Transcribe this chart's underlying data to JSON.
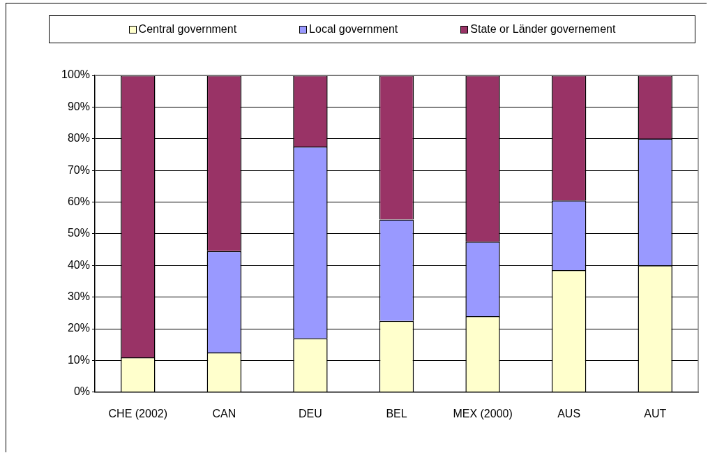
{
  "chart_data": {
    "type": "bar",
    "stacked": true,
    "categories": [
      "CHE (2002)",
      "CAN",
      "DEU",
      "BEL",
      "MEX (2000)",
      "AUS",
      "AUT"
    ],
    "series": [
      {
        "name": "Central government",
        "color": "#ffffcc",
        "values": [
          11,
          12.5,
          17,
          22.5,
          24,
          38.5,
          40
        ]
      },
      {
        "name": "Local government",
        "color": "#9999ff",
        "values": [
          0,
          32,
          60.5,
          32,
          23.5,
          22,
          40
        ]
      },
      {
        "name": "State or Länder governement",
        "color": "#993366",
        "values": [
          89,
          55.5,
          22.5,
          45.5,
          52.5,
          39.5,
          20
        ]
      }
    ],
    "ylim": [
      0,
      100
    ],
    "yticks": [
      {
        "value": 0,
        "label": "0%"
      },
      {
        "value": 10,
        "label": "10%"
      },
      {
        "value": 20,
        "label": "20%"
      },
      {
        "value": 30,
        "label": "30%"
      },
      {
        "value": 40,
        "label": "40%"
      },
      {
        "value": 50,
        "label": "50%"
      },
      {
        "value": 60,
        "label": "60%"
      },
      {
        "value": 70,
        "label": "70%"
      },
      {
        "value": 80,
        "label": "80%"
      },
      {
        "value": 90,
        "label": "90%"
      },
      {
        "value": 100,
        "label": "100%"
      }
    ],
    "grid": "y",
    "legend": "top"
  }
}
